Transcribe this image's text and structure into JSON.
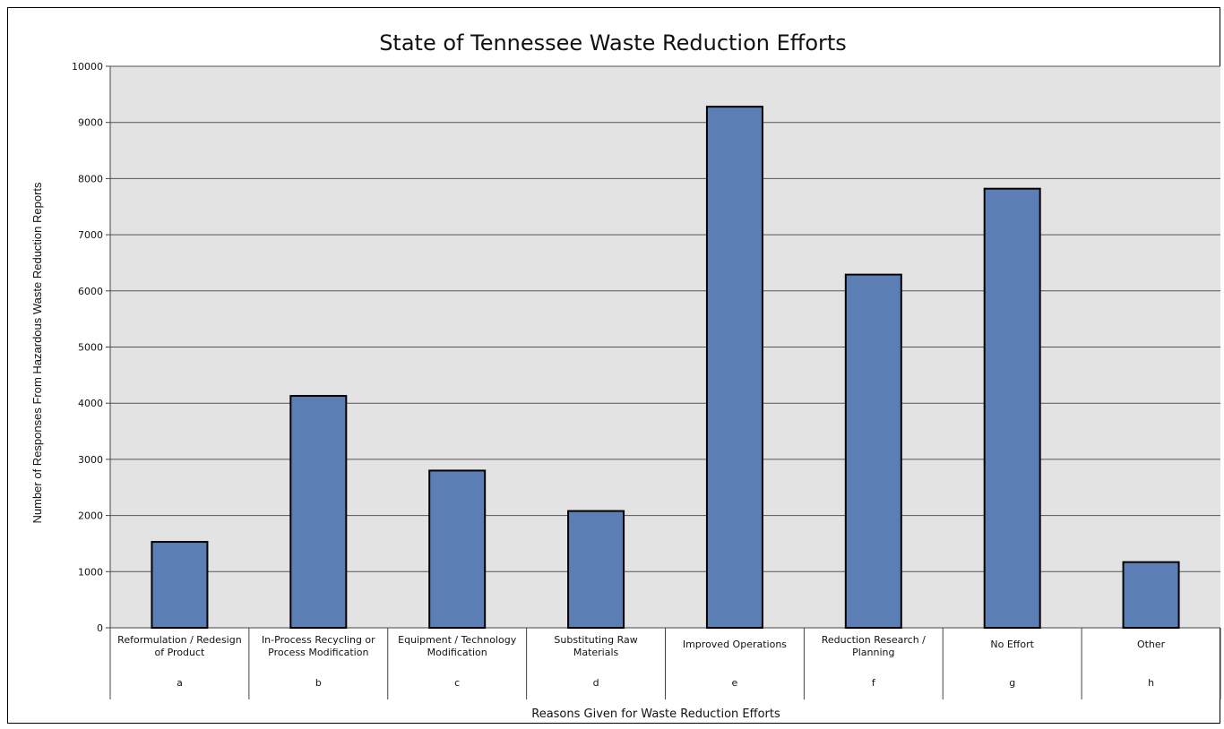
{
  "chart_data": {
    "type": "bar",
    "title": "State of Tennessee Waste Reduction Efforts",
    "xlabel": "Reasons Given for Waste Reduction Efforts",
    "ylabel": "Number of Responses From Hazardous Waste Reduction Reports",
    "ylim": [
      0,
      10000
    ],
    "yticks": [
      0,
      1000,
      2000,
      3000,
      4000,
      5000,
      6000,
      7000,
      8000,
      9000,
      10000
    ],
    "grid": true,
    "categories": [
      {
        "label": [
          "Reformulation / Redesign",
          "of Product"
        ],
        "code": "a"
      },
      {
        "label": [
          "In-Process Recycling or",
          "Process Modification"
        ],
        "code": "b"
      },
      {
        "label": [
          "Equipment / Technology",
          "Modification"
        ],
        "code": "c"
      },
      {
        "label": [
          "Substituting Raw",
          "Materials"
        ],
        "code": "d"
      },
      {
        "label": [
          "Improved Operations"
        ],
        "code": "e"
      },
      {
        "label": [
          "Reduction Research /",
          "Planning"
        ],
        "code": "f"
      },
      {
        "label": [
          "No Effort"
        ],
        "code": "g"
      },
      {
        "label": [
          "Other"
        ],
        "code": "h"
      }
    ],
    "values": [
      1530,
      4130,
      2800,
      2080,
      9280,
      6290,
      7820,
      1170
    ],
    "colors": {
      "bar_fill": "#5b7fb4",
      "bar_stroke": "#000000",
      "plot_bg": "#e3e3e3",
      "gridline": "#555555"
    }
  }
}
